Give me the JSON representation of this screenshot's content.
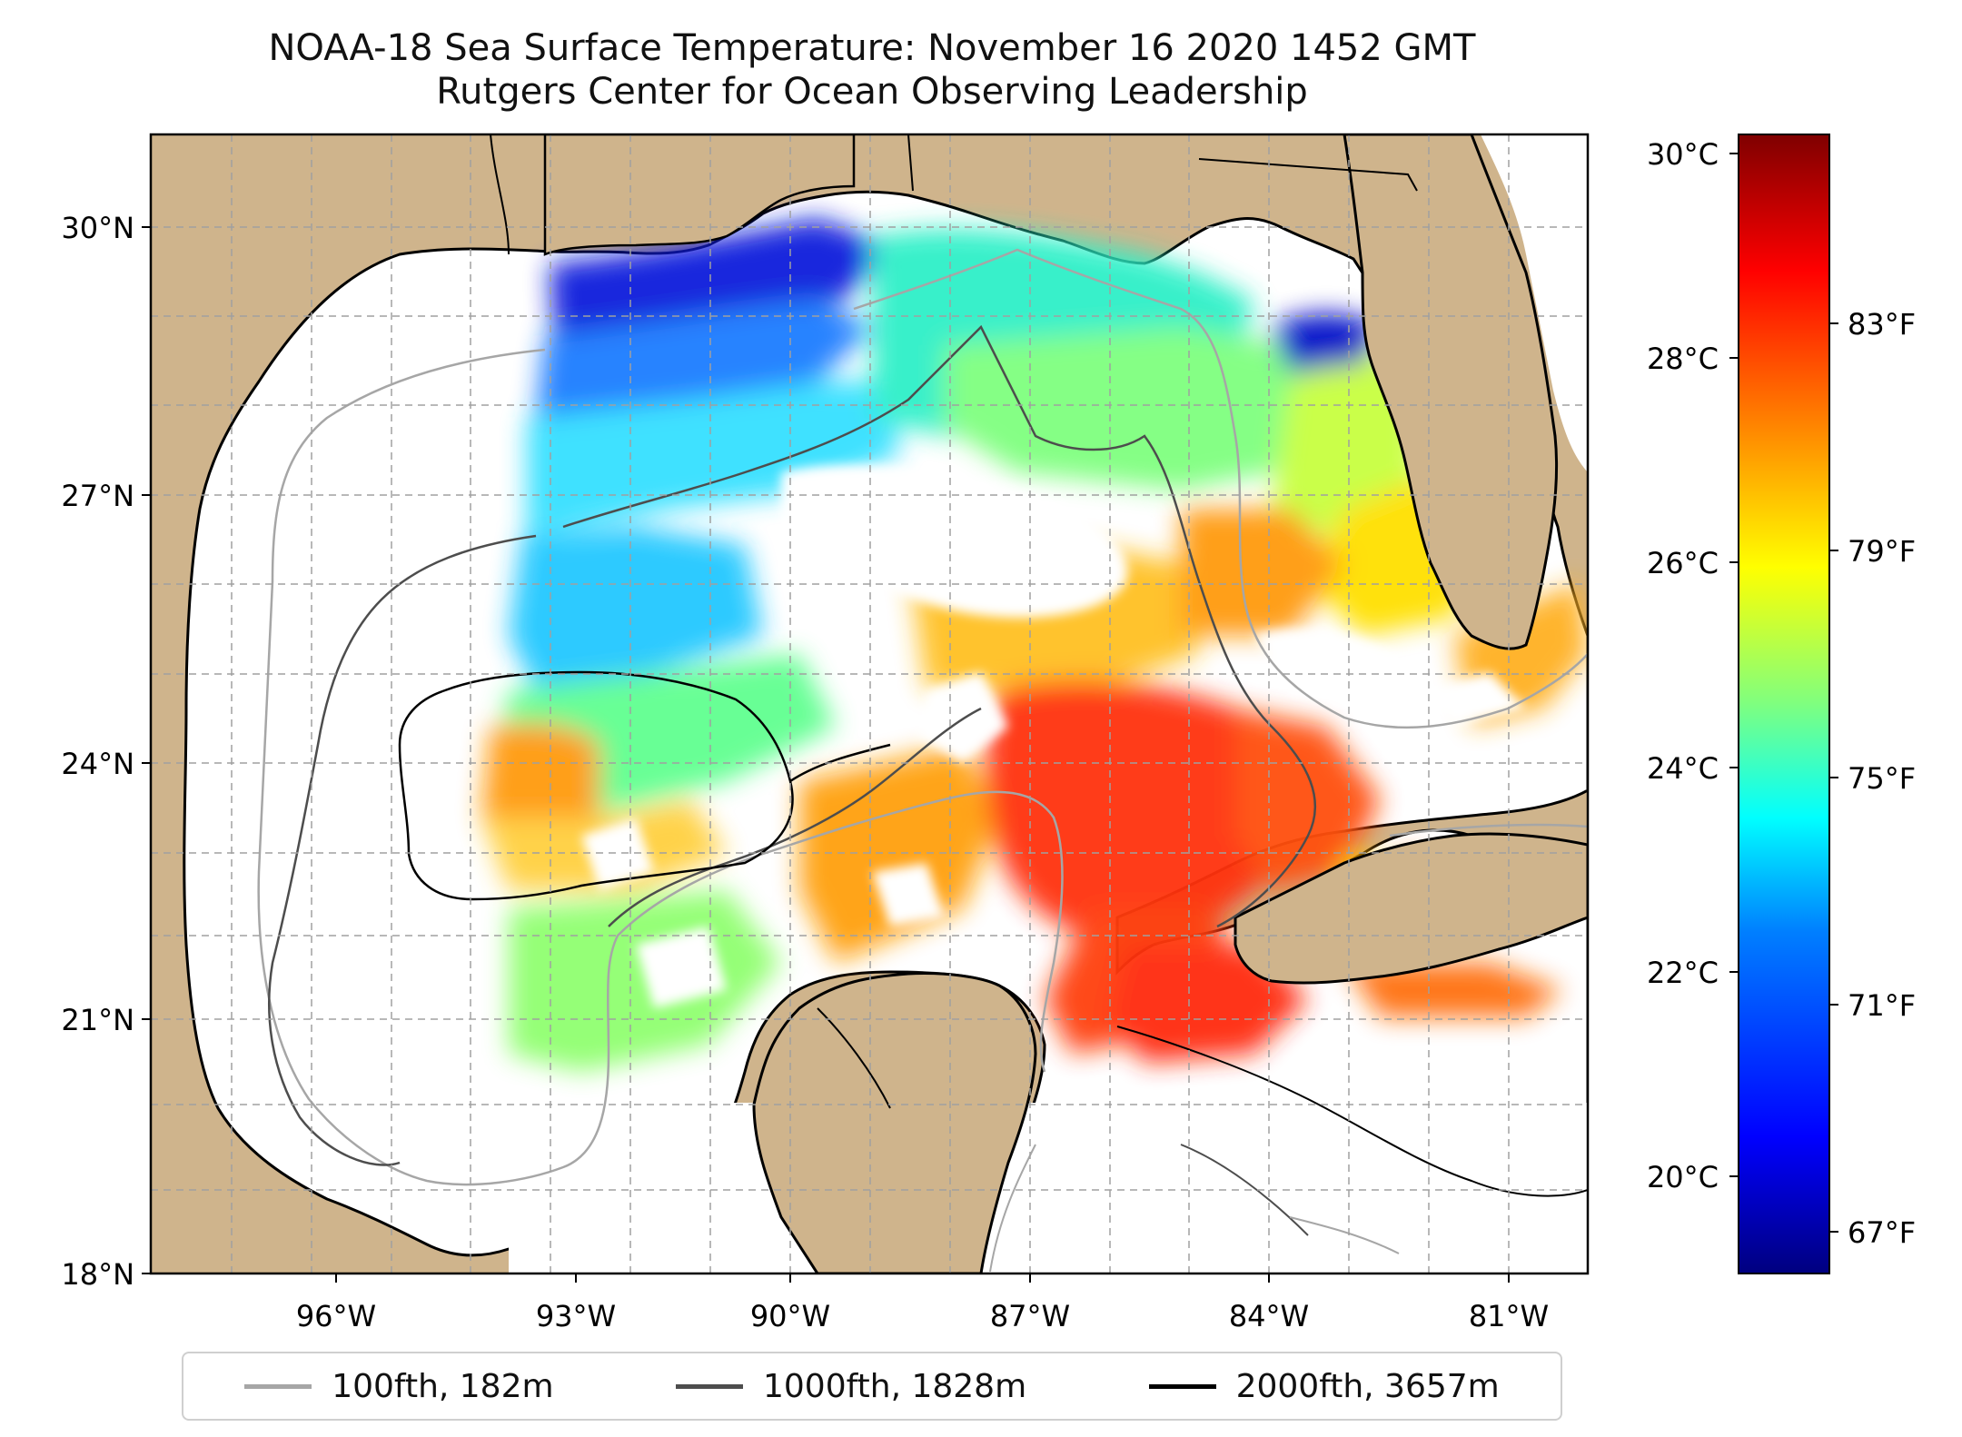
{
  "title": "NOAA-18 Sea Surface Temperature: November 16 2020 1452 GMT",
  "subtitle": "Rutgers Center for Ocean Observing Leadership",
  "map": {
    "lat_ticks": [
      "30°N",
      "27°N",
      "24°N",
      "21°N",
      "18°N"
    ],
    "lon_ticks": [
      "96°W",
      "93°W",
      "90°W",
      "87°W",
      "84°W",
      "81°W"
    ],
    "extent": {
      "lon_min": -98.0,
      "lon_max": -80.0,
      "lat_min": 18.0,
      "lat_max": 31.0
    },
    "colors": {
      "land": "#cfb48c",
      "no_data": "#ffffff",
      "gridline": "#b0b0b0"
    }
  },
  "colorbar": {
    "celsius_ticks": [
      "30°C",
      "28°C",
      "26°C",
      "24°C",
      "22°C",
      "20°C"
    ],
    "fahrenheit_ticks": [
      "83°F",
      "79°F",
      "75°F",
      "71°F",
      "67°F"
    ],
    "colormap": "jet",
    "colors": [
      "#00007f",
      "#0000ff",
      "#007fff",
      "#00ffff",
      "#7fff7f",
      "#ffff00",
      "#ff7f00",
      "#ff0000",
      "#7f0000"
    ]
  },
  "legend": [
    {
      "label": "100fth, 182m",
      "color": "#a6a6a6"
    },
    {
      "label": "1000fth, 1828m",
      "color": "#4d4d4d"
    },
    {
      "label": "2000fth, 3657m",
      "color": "#000000"
    }
  ]
}
